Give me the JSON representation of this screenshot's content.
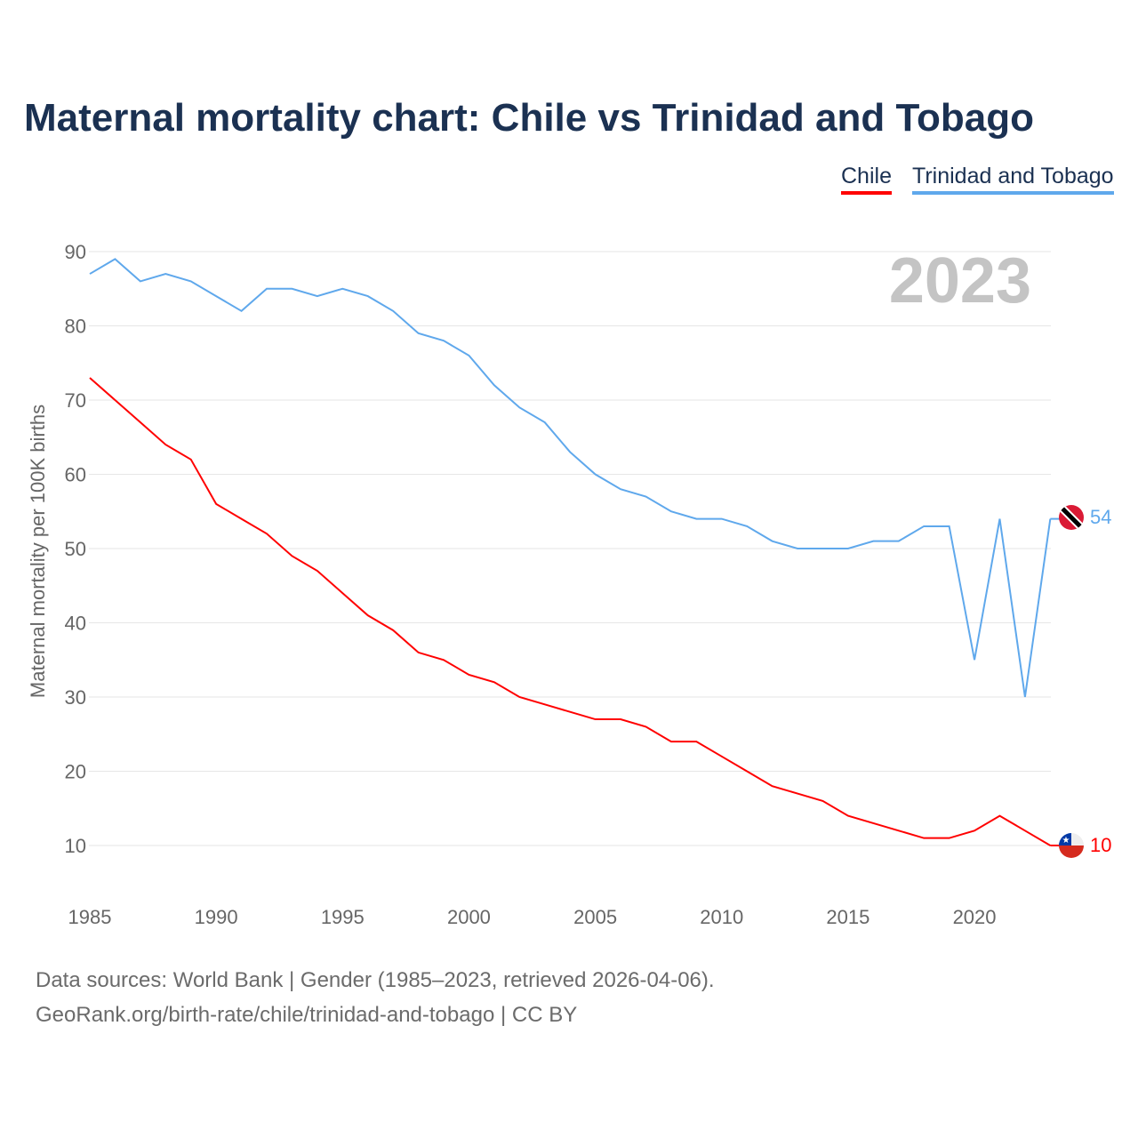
{
  "title": "Maternal mortality chart: Chile vs Trinidad and Tobago",
  "footer": {
    "line1": "Data sources: World Bank | Gender (1985–2023, retrieved 2026-04-06).",
    "line2": "GeoRank.org/birth-rate/chile/trinidad-and-tobago | CC BY"
  },
  "chart_data": {
    "type": "line",
    "title": "Maternal mortality chart: Chile vs Trinidad and Tobago",
    "xlabel": "",
    "ylabel": "Maternal mortality per 100K births",
    "year_label": "2023",
    "xlim": [
      1985,
      2023
    ],
    "ylim": [
      5,
      92
    ],
    "yticks": [
      10,
      20,
      30,
      40,
      50,
      60,
      70,
      80,
      90
    ],
    "xticks": [
      1985,
      1990,
      1995,
      2000,
      2005,
      2010,
      2015,
      2020
    ],
    "grid": true,
    "legend": "top-right",
    "x": [
      1985,
      1986,
      1987,
      1988,
      1989,
      1990,
      1991,
      1992,
      1993,
      1994,
      1995,
      1996,
      1997,
      1998,
      1999,
      2000,
      2001,
      2002,
      2003,
      2004,
      2005,
      2006,
      2007,
      2008,
      2009,
      2010,
      2011,
      2012,
      2013,
      2014,
      2015,
      2016,
      2017,
      2018,
      2019,
      2020,
      2021,
      2022,
      2023
    ],
    "series": [
      {
        "name": "Chile",
        "color": "#ff0000",
        "end_label": "10",
        "values": [
          73,
          70,
          67,
          64,
          62,
          56,
          54,
          52,
          49,
          47,
          44,
          41,
          39,
          36,
          35,
          33,
          32,
          30,
          29,
          28,
          27,
          27,
          26,
          24,
          24,
          22,
          20,
          18,
          17,
          16,
          14,
          13,
          12,
          11,
          11,
          12,
          14,
          12,
          10
        ]
      },
      {
        "name": "Trinidad and Tobago",
        "color": "#5fa8ec",
        "end_label": "54",
        "values": [
          87,
          89,
          86,
          87,
          86,
          84,
          82,
          85,
          85,
          84,
          85,
          84,
          82,
          79,
          78,
          76,
          72,
          69,
          67,
          63,
          60,
          58,
          57,
          55,
          54,
          54,
          53,
          51,
          50,
          50,
          50,
          51,
          51,
          53,
          53,
          35,
          54,
          30,
          54
        ]
      }
    ]
  }
}
